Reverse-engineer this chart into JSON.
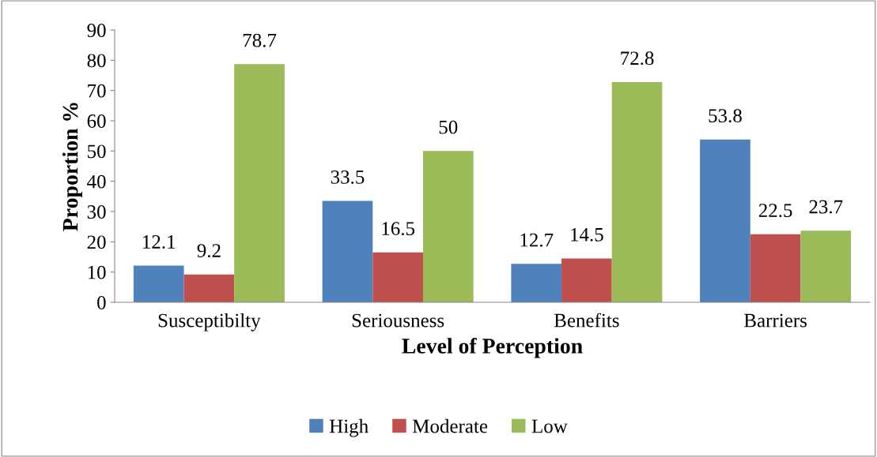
{
  "chart_data": {
    "type": "bar",
    "categories": [
      "Susceptibilty",
      "Seriousness",
      "Benefits",
      "Barriers"
    ],
    "series": [
      {
        "name": "High",
        "color": "#4f81bd",
        "values": [
          12.1,
          33.5,
          12.7,
          53.8
        ]
      },
      {
        "name": "Moderate",
        "color": "#c0504d",
        "values": [
          9.2,
          16.5,
          14.5,
          22.5
        ]
      },
      {
        "name": "Low",
        "color": "#9bbb59",
        "values": [
          78.7,
          50,
          72.8,
          23.7
        ]
      }
    ],
    "xlabel": "Level of Perception",
    "ylabel": "Proportion %",
    "ylim": [
      0,
      90
    ],
    "yticks": [
      0,
      10,
      20,
      30,
      40,
      50,
      60,
      70,
      80,
      90
    ],
    "data_labels": true,
    "grid": false,
    "legend": "bottom"
  }
}
